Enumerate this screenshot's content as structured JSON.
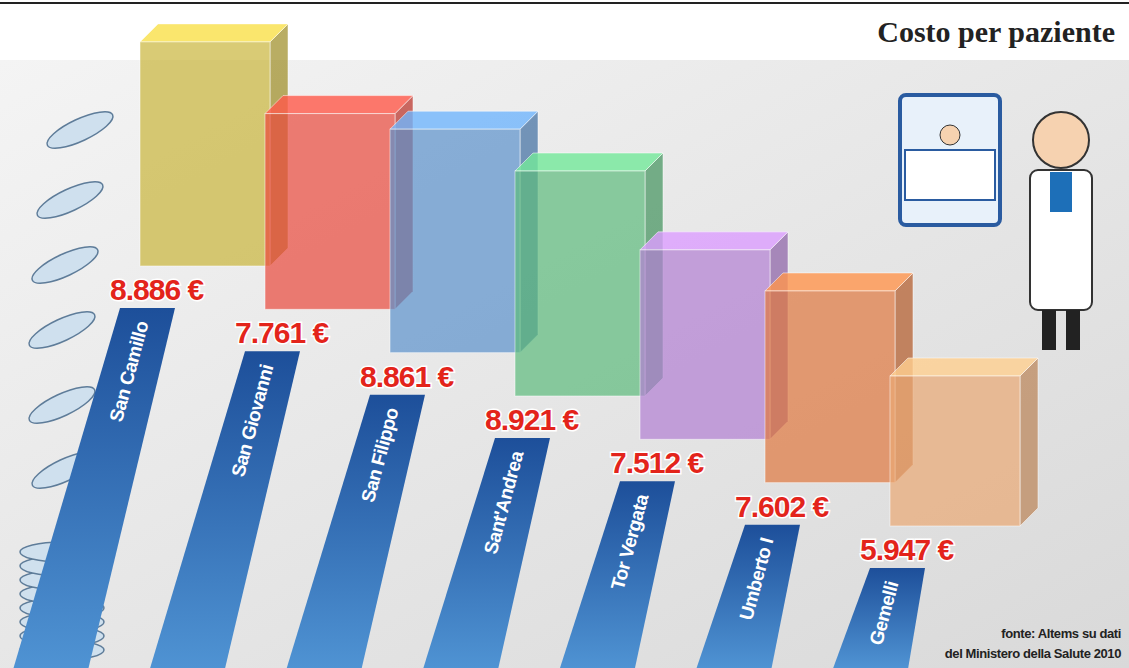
{
  "chart_data": {
    "type": "bar",
    "title": "Costo per paziente",
    "categories": [
      "San Camillo",
      "San Giovanni",
      "San Filippo",
      "Sant'Andrea",
      "Tor Vergata",
      "Umberto I",
      "Gemelli"
    ],
    "values": [
      8886,
      7761,
      8861,
      8921,
      7512,
      7602,
      5947
    ],
    "value_labels": [
      "8.886 €",
      "7.761 €",
      "8.861 €",
      "8.921 €",
      "7.512 €",
      "7.602 €",
      "5.947 €"
    ],
    "colors": [
      "#c9b53a",
      "#e9483c",
      "#5b92cc",
      "#5dbb7c",
      "#b27fd3",
      "#e0783f",
      "#e9a874"
    ],
    "data_labels": true,
    "source": [
      "fonte: Altems su dati",
      "del Ministero della Salute 2010"
    ]
  }
}
